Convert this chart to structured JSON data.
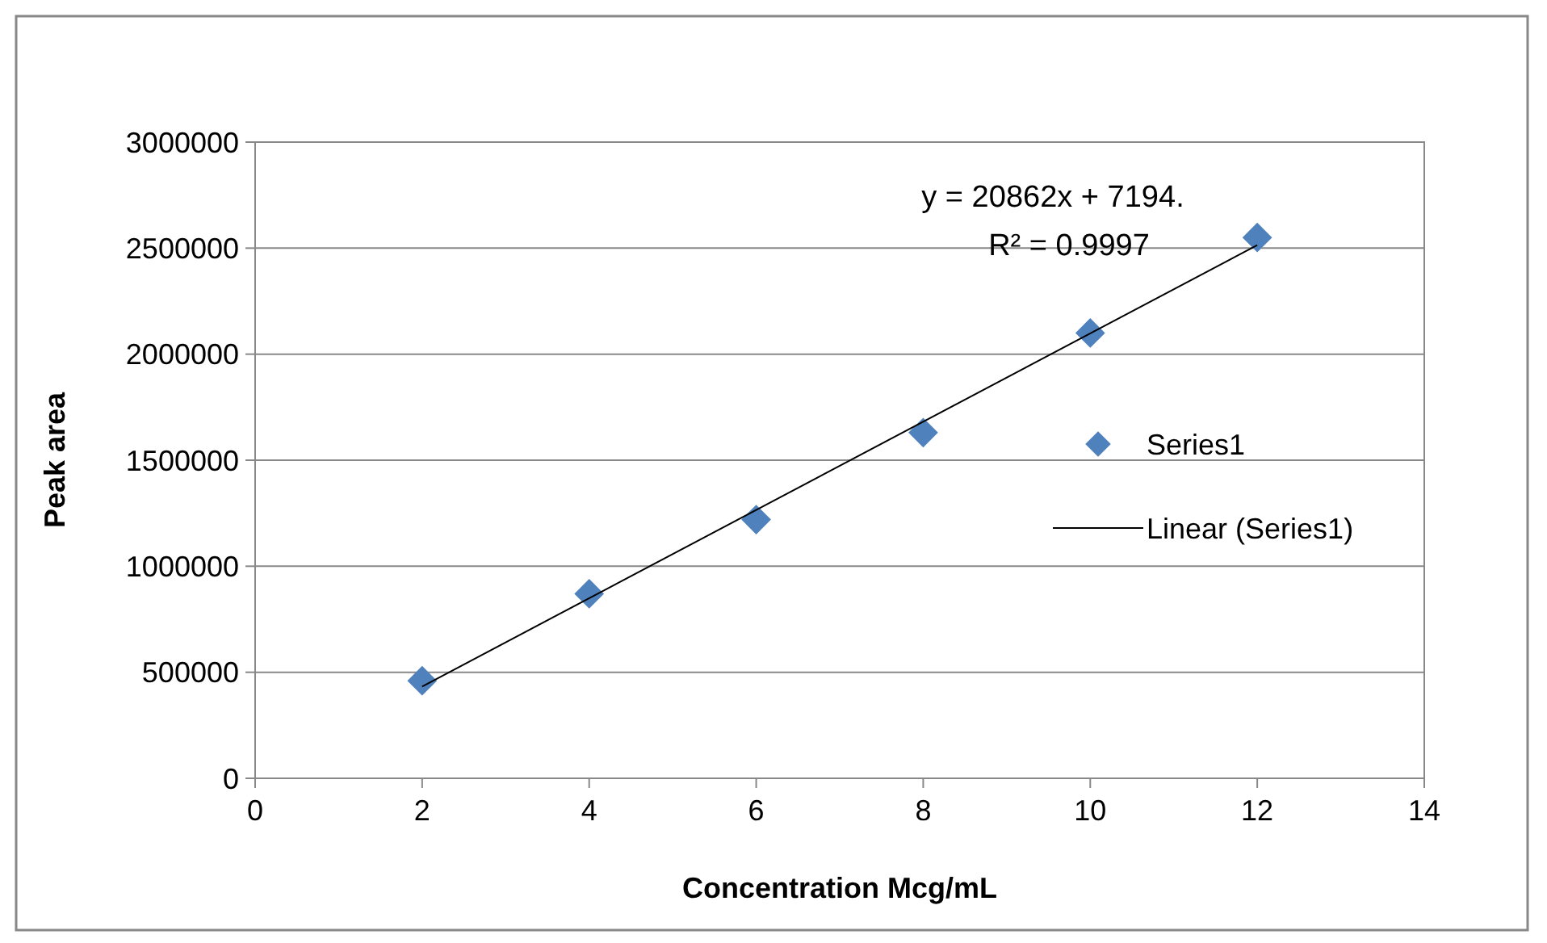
{
  "chart_data": {
    "type": "scatter",
    "xlabel": "Concentration Mcg/mL",
    "ylabel": "Peak area",
    "xlim": [
      0,
      14
    ],
    "xticks": [
      0,
      2,
      4,
      6,
      8,
      10,
      12,
      14
    ],
    "ylim": [
      0,
      3000000
    ],
    "yticks": [
      0,
      500000,
      1000000,
      1500000,
      2000000,
      2500000,
      3000000
    ],
    "grid": "y",
    "legend": "right",
    "marker": "diamond",
    "annotations": [
      "y = 20862x + 7194.",
      "R² = 0.9997"
    ],
    "series": [
      {
        "name": "Series1",
        "color": "#4f81bd",
        "x": [
          2,
          4,
          6,
          8,
          10,
          12
        ],
        "values": [
          460000,
          870000,
          1220000,
          1630000,
          2100000,
          2550000
        ]
      },
      {
        "name": "Linear (Series1)",
        "type": "line",
        "color": "#000000",
        "line_style": "solid",
        "marker": "none",
        "x": [
          2,
          12
        ],
        "values": [
          433000,
          2514000
        ]
      }
    ]
  }
}
